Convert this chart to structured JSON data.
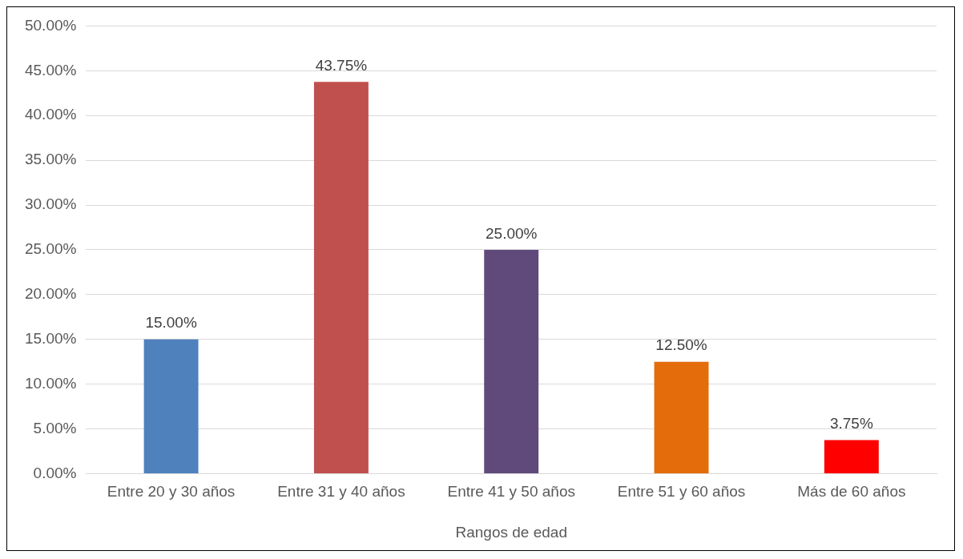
{
  "chart_data": {
    "type": "bar",
    "xlabel": "Rangos de edad",
    "categories": [
      "Entre 20 y 30 años",
      "Entre 31 y 40 años",
      "Entre 41 y 50 años",
      "Entre 51 y 60 años",
      "Más de 60 años"
    ],
    "values": [
      15,
      43.75,
      25,
      12.5,
      3.75
    ],
    "colors": [
      "#4f81bd",
      "#c0504d",
      "#604a7b",
      "#e46c0a",
      "#ff0000"
    ],
    "value_labels": [
      "15.00%",
      "43.75%",
      "25.00%",
      "12.50%",
      "3.75%"
    ],
    "ylim": [
      0,
      50
    ],
    "yticks": [
      {
        "value": 0,
        "label": "0.00%"
      },
      {
        "value": 5,
        "label": "5.00%"
      },
      {
        "value": 10,
        "label": "10.00%"
      },
      {
        "value": 15,
        "label": "15.00%"
      },
      {
        "value": 20,
        "label": "20.00%"
      },
      {
        "value": 25,
        "label": "25.00%"
      },
      {
        "value": 30,
        "label": "30.00%"
      },
      {
        "value": 35,
        "label": "35.00%"
      },
      {
        "value": 40,
        "label": "40.00%"
      },
      {
        "value": 45,
        "label": "45.00%"
      },
      {
        "value": 50,
        "label": "50.00%"
      }
    ],
    "grid": "y",
    "legend": false
  }
}
